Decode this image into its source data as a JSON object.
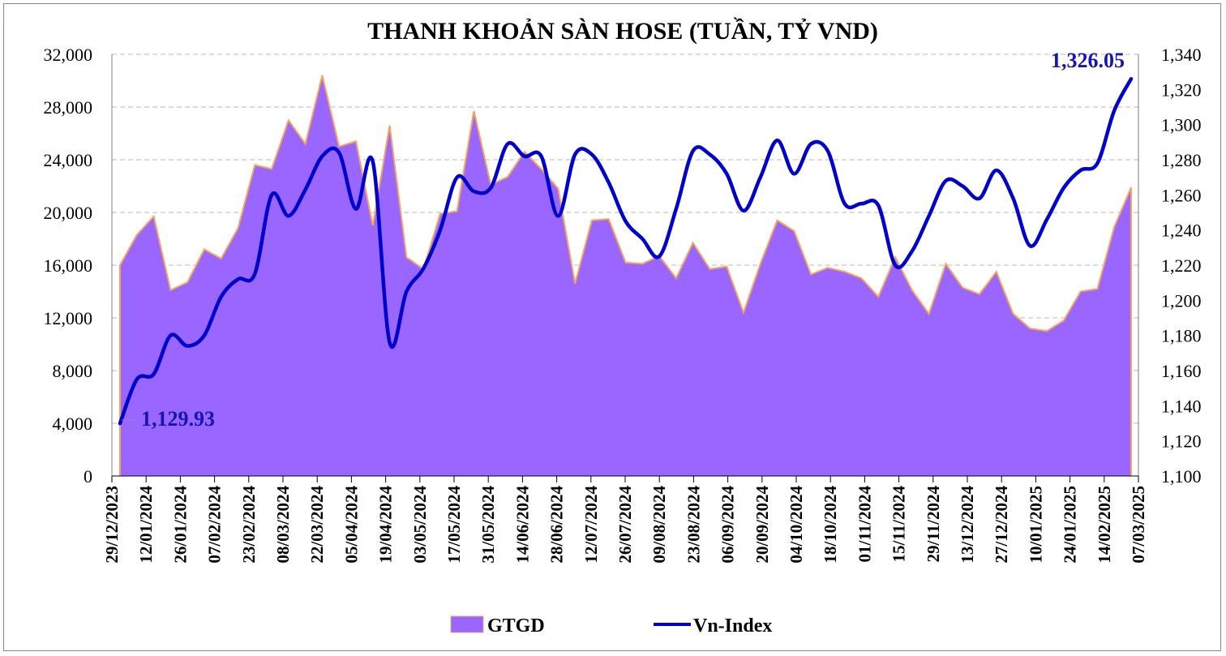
{
  "chart_data": {
    "type": "area",
    "title": "THANH KHOẢN SÀN HOSE (TUẦN, TỶ VND)",
    "y_left": {
      "min": 0,
      "max": 32000,
      "ticks": [
        "0",
        "4,000",
        "8,000",
        "12,000",
        "16,000",
        "20,000",
        "24,000",
        "28,000",
        "32,000"
      ]
    },
    "y_right": {
      "min": 1100,
      "max": 1340,
      "ticks": [
        "1,100",
        "1,120",
        "1,140",
        "1,160",
        "1,180",
        "1,200",
        "1,220",
        "1,240",
        "1,260",
        "1,280",
        "1,300",
        "1,320",
        "1,340"
      ]
    },
    "x_tick_labels": [
      "29/12/2023",
      "12/01/2024",
      "26/01/2024",
      "07/02/2024",
      "23/02/2024",
      "08/03/2024",
      "22/03/2024",
      "05/04/2024",
      "19/04/2024",
      "03/05/2024",
      "17/05/2024",
      "31/05/2024",
      "14/06/2024",
      "28/06/2024",
      "12/07/2024",
      "26/07/2024",
      "09/08/2024",
      "23/08/2024",
      "06/09/2024",
      "20/09/2024",
      "04/10/2024",
      "18/10/2024",
      "01/11/2024",
      "15/11/2024",
      "29/11/2024",
      "13/12/2024",
      "27/12/2024",
      "10/01/2025",
      "24/01/2025",
      "14/02/2025",
      "07/03/2025"
    ],
    "grid": true,
    "legend_position": "bottom",
    "series": [
      {
        "name": "GTGD",
        "kind": "area",
        "axis": "left",
        "color": "#9966ff",
        "edge_color": "#f4a460",
        "values": [
          16000,
          18300,
          19700,
          14100,
          14700,
          17200,
          16500,
          18800,
          23600,
          23300,
          27000,
          25200,
          30400,
          25000,
          25400,
          19000,
          26600,
          16600,
          15700,
          19900,
          20100,
          27700,
          22100,
          22700,
          24600,
          23300,
          21800,
          14600,
          19400,
          19500,
          16200,
          16100,
          16700,
          15000,
          17700,
          15700,
          15900,
          12400,
          16100,
          19400,
          18600,
          15300,
          15800,
          15500,
          15000,
          13600,
          16600,
          14100,
          12300,
          16100,
          14300,
          13800,
          15500,
          12300,
          11200,
          11000,
          11800,
          14000,
          14200,
          18900,
          21900
        ]
      },
      {
        "name": "Vn-Index",
        "kind": "line",
        "axis": "right",
        "color": "#0000cc",
        "values": [
          1129.93,
          1155,
          1158,
          1180,
          1174,
          1180,
          1202,
          1212,
          1215,
          1260,
          1248,
          1263,
          1282,
          1284,
          1252,
          1279,
          1176,
          1205,
          1218,
          1240,
          1270,
          1262,
          1264,
          1289,
          1282,
          1282,
          1248,
          1283,
          1283,
          1267,
          1245,
          1235,
          1225,
          1252,
          1285,
          1283,
          1272,
          1251,
          1270,
          1291,
          1272,
          1289,
          1285,
          1255,
          1255,
          1254,
          1220,
          1228,
          1248,
          1268,
          1265,
          1258,
          1274,
          1258,
          1231,
          1246,
          1264,
          1274,
          1278,
          1308,
          1326.05
        ]
      }
    ],
    "annotations": {
      "start_label": "1,129.93",
      "end_label": "1,326.05"
    }
  }
}
